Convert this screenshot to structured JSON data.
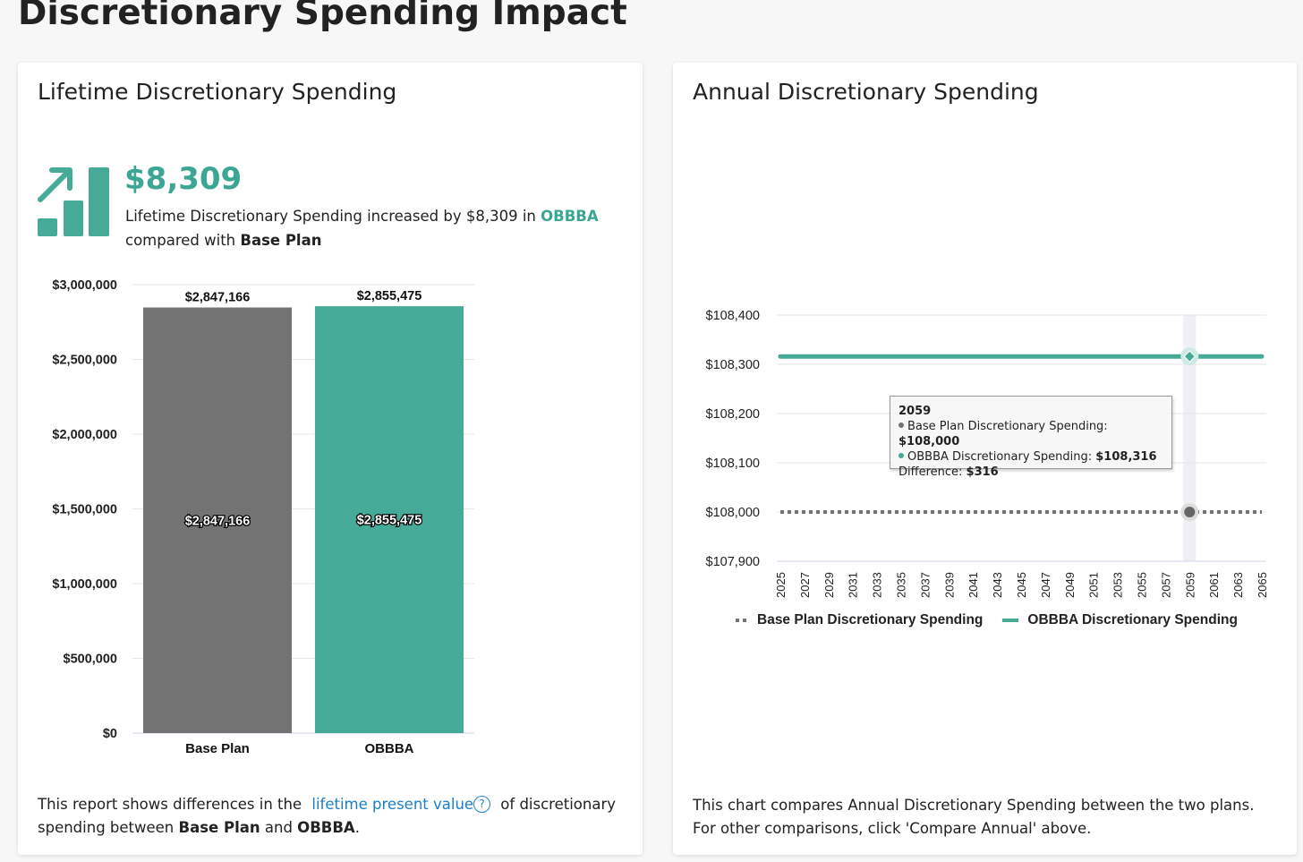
{
  "page_title": "Discretionary Spending Impact",
  "left_card": {
    "title": "Lifetime Discretionary Spending",
    "kpi_value": "$8,309",
    "kpi_text_1": "Lifetime Discretionary Spending increased by $8,309 in ",
    "kpi_plan": "OBBBA",
    "kpi_text_2": "compared with ",
    "kpi_base": "Base Plan",
    "footer_1": "This report shows differences in the ",
    "footer_link": "lifetime present value",
    "footer_help": "?",
    "footer_2": " of discretionary spending between ",
    "footer_base": "Base Plan",
    "footer_and": " and ",
    "footer_plan": "OBBBA",
    "footer_end": "."
  },
  "right_card": {
    "title": "Annual Discretionary Spending",
    "footer": "This chart compares Annual Discretionary Spending between the two plans. For other comparisons, click 'Compare Annual' above.",
    "tooltip": {
      "year": "2059",
      "base_label": "Base Plan Discretionary Spending: ",
      "base_value": "$108,000",
      "plan_label": "OBBBA Discretionary Spending: ",
      "plan_value": "$108,316",
      "diff_label": "Difference: ",
      "diff_value": "$316"
    }
  },
  "colors": {
    "base": "#737373",
    "plan": "#45aa98",
    "accent": "#3aa693"
  },
  "chart_data": [
    {
      "type": "bar",
      "title": "Lifetime Discretionary Spending",
      "categories": [
        "Base Plan",
        "OBBBA"
      ],
      "values": [
        2847166,
        2855475
      ],
      "value_labels": [
        "$2,847,166",
        "$2,855,475"
      ],
      "ylim": [
        0,
        3000000
      ],
      "yticks": [
        0,
        500000,
        1000000,
        1500000,
        2000000,
        2500000,
        3000000
      ],
      "ytick_labels": [
        "$0",
        "$500,000",
        "$1,000,000",
        "$1,500,000",
        "$2,000,000",
        "$2,500,000",
        "$3,000,000"
      ],
      "grid": true
    },
    {
      "type": "line",
      "title": "Annual Discretionary Spending",
      "x_start": 2025,
      "x_end": 2065,
      "xtick_labels": [
        "2025",
        "2027",
        "2029",
        "2031",
        "2033",
        "2035",
        "2037",
        "2039",
        "2041",
        "2043",
        "2045",
        "2047",
        "2049",
        "2051",
        "2053",
        "2055",
        "2057",
        "2059",
        "2061",
        "2063",
        "2065"
      ],
      "ylim": [
        107900,
        108400
      ],
      "yticks": [
        107900,
        108000,
        108100,
        108200,
        108300,
        108400
      ],
      "ytick_labels": [
        "$107,900",
        "$108,000",
        "$108,100",
        "$108,200",
        "$108,300",
        "$108,400"
      ],
      "series": [
        {
          "name": "Base Plan Discretionary Spending",
          "value": 108000,
          "style": "dotted"
        },
        {
          "name": "OBBBA Discretionary Spending",
          "value": 108316,
          "style": "solid"
        }
      ],
      "highlight_x": 2059,
      "legend": "bottom",
      "grid": true
    }
  ]
}
